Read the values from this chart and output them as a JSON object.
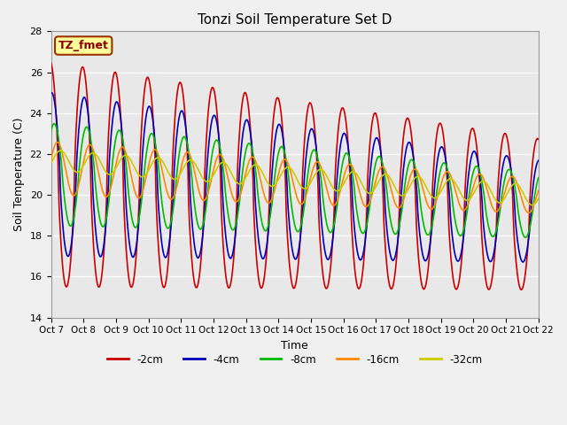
{
  "title": "Tonzi Soil Temperature Set D",
  "xlabel": "Time",
  "ylabel": "Soil Temperature (C)",
  "ylim": [
    14,
    28
  ],
  "yticks": [
    14,
    16,
    18,
    20,
    22,
    24,
    26,
    28
  ],
  "fig_bg": "#f0f0f0",
  "plot_bg": "#e8e8e8",
  "legend_label": "TZ_fmet",
  "legend_bg": "#ffff99",
  "legend_border": "#993300",
  "series": [
    {
      "label": "-2cm",
      "color": "#cc0000",
      "lw": 1.2
    },
    {
      "label": "-4cm",
      "color": "#0000bb",
      "lw": 1.2
    },
    {
      "label": "-8cm",
      "color": "#00bb00",
      "lw": 1.2
    },
    {
      "label": "-16cm",
      "color": "#ff8800",
      "lw": 1.2
    },
    {
      "label": "-32cm",
      "color": "#cccc00",
      "lw": 1.2
    }
  ],
  "n_days": 15,
  "points_per_day": 48,
  "date_labels": [
    "Oct 7",
    "Oct 8",
    "Oct 9",
    "Oct 10",
    "Oct 11",
    "Oct 12",
    "Oct 13",
    "Oct 14",
    "Oct 15",
    "Oct 16",
    "Oct 17",
    "Oct 18",
    "Oct 19",
    "Oct 20",
    "Oct 21",
    "Oct 22"
  ]
}
